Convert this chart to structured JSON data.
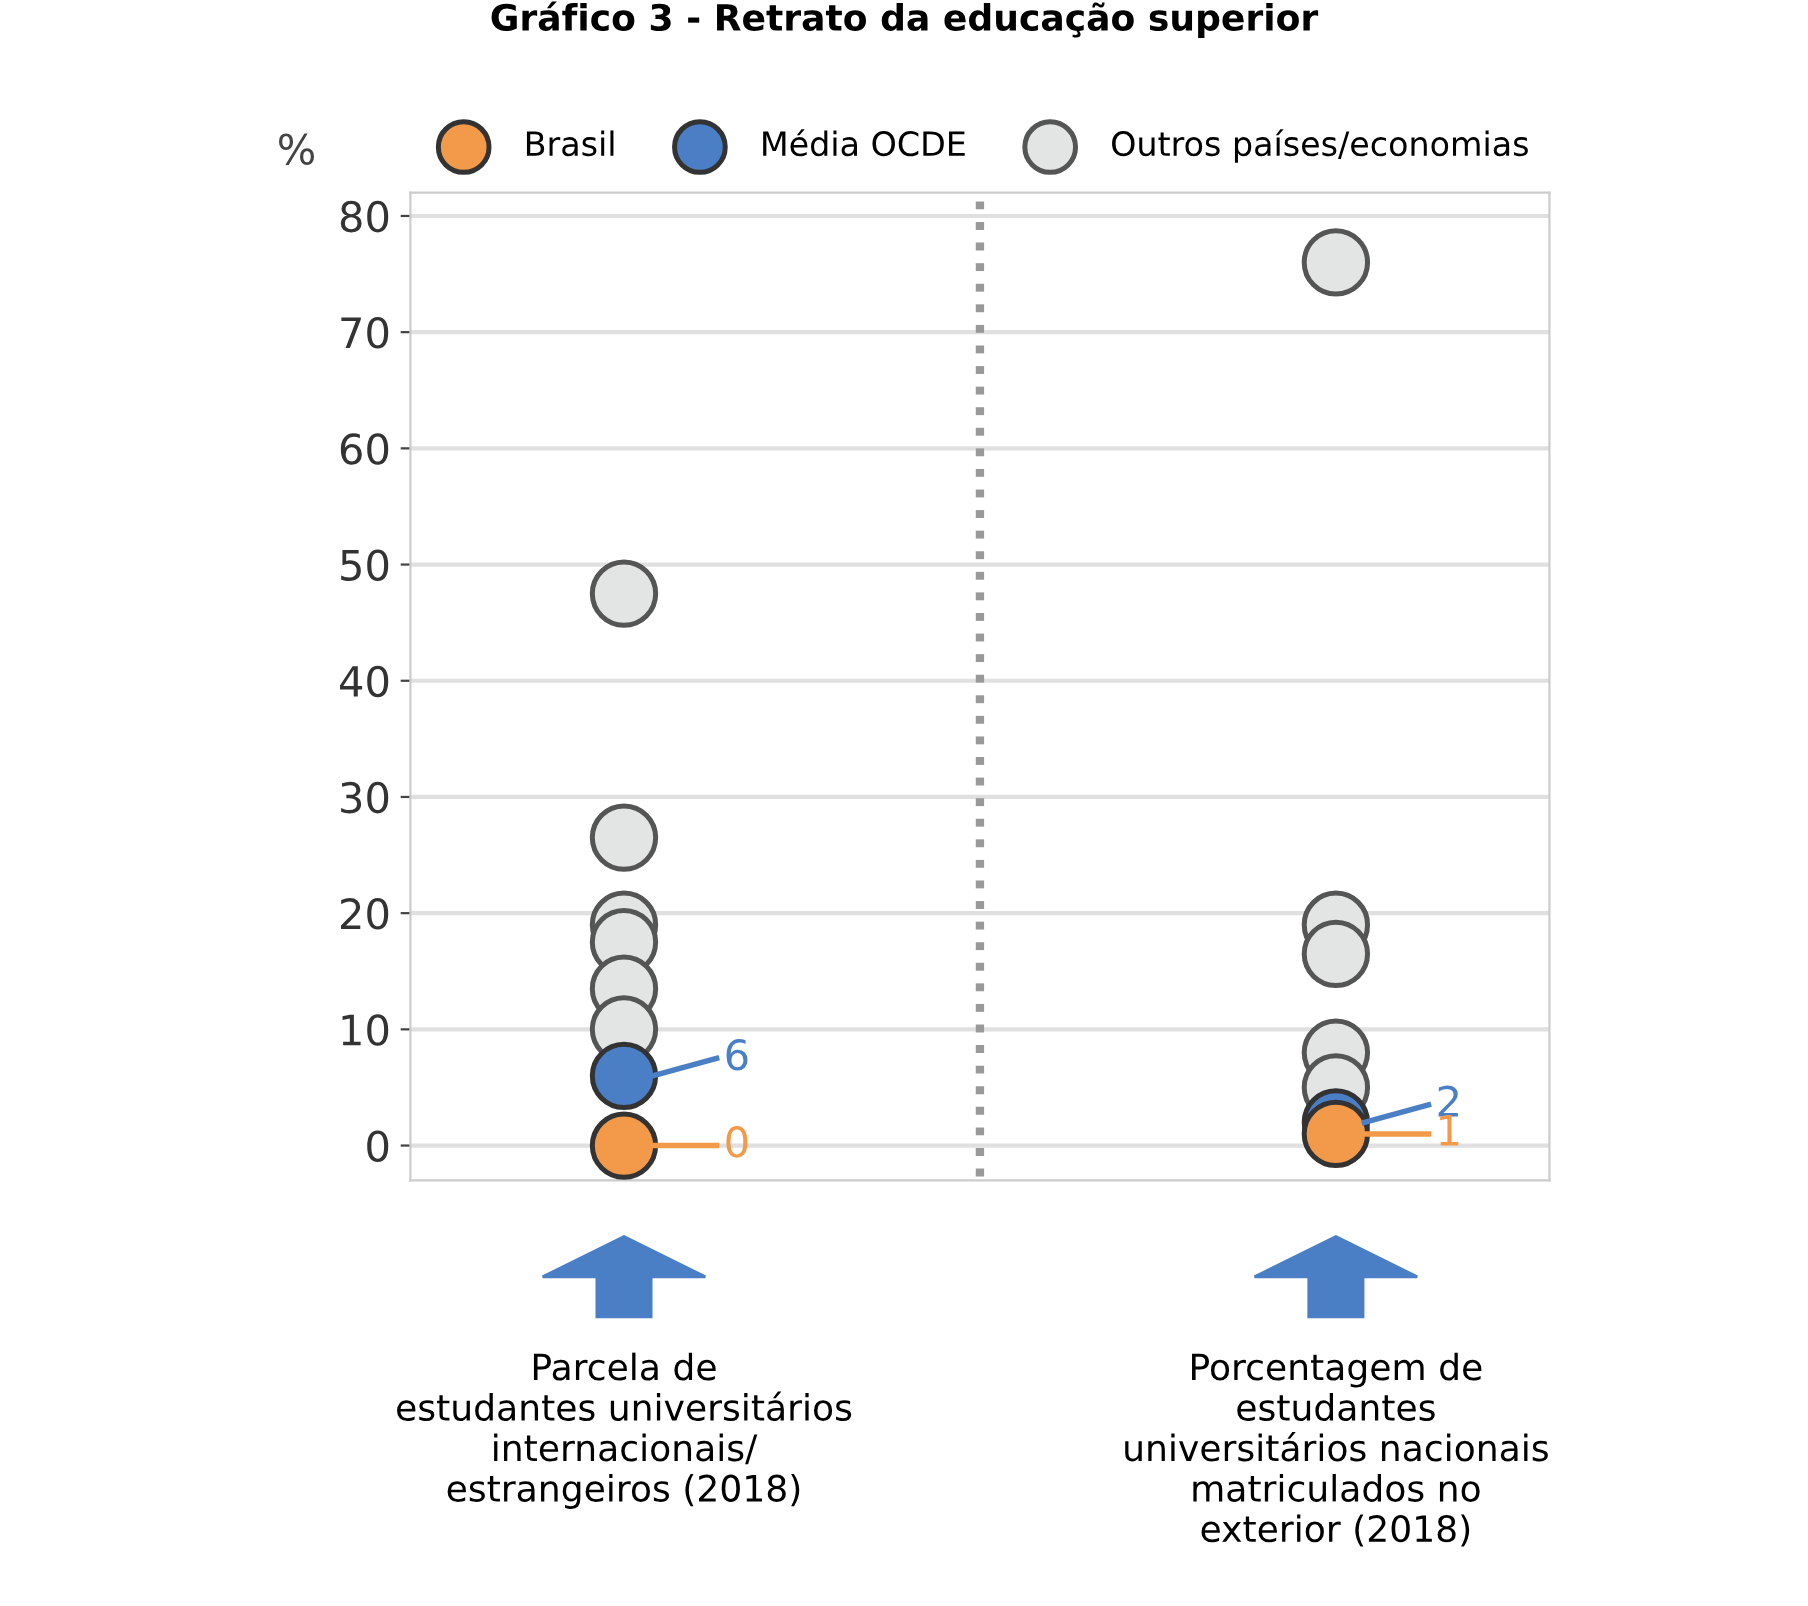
{
  "chart_data": {
    "type": "scatter",
    "title": "Gráfico 3 - Retrato da educação superior",
    "ylabel": "%",
    "categories": [
      "Parcela de\nestudantes universitários\ninternacionais/\nestrangeiros (2018)",
      "Porcentagem de\nestudantes\nuniversitários nacionais\nmatriculados no\nexterior (2018)"
    ],
    "series": [
      {
        "name": "Outros países/economias",
        "color": "#e3e4e4",
        "x": [
          "Parcela de\nestudantes universitários\ninternacionais/\nestrangeiros (2018)",
          "Parcela de\nestudantes universitários\ninternacionais/\nestrangeiros (2018)",
          "Parcela de\nestudantes universitários\ninternacionais/\nestrangeiros (2018)",
          "Parcela de\nestudantes universitários\ninternacionais/\nestrangeiros (2018)",
          "Parcela de\nestudantes universitários\ninternacionais/\nestrangeiros (2018)",
          "Parcela de\nestudantes universitários\ninternacionais/\nestrangeiros (2018)",
          "Porcentagem de\nestudantes\nuniversitários nacionais\nmatriculados no\nexterior (2018)",
          "Porcentagem de\nestudantes\nuniversitários nacionais\nmatriculados no\nexterior (2018)",
          "Porcentagem de\nestudantes\nuniversitários nacionais\nmatriculados no\nexterior (2018)",
          "Porcentagem de\nestudantes\nuniversitários nacionais\nmatriculados no\nexterior (2018)",
          "Porcentagem de\nestudantes\nuniversitários nacionais\nmatriculados no\nexterior (2018)"
        ],
        "values": [
          47.5,
          26.5,
          19,
          17.5,
          13.5,
          10,
          76,
          19,
          16.5,
          8,
          5
        ]
      },
      {
        "name": "Média OCDE",
        "color": "#4a7fc6",
        "values": [
          6,
          2
        ],
        "value_labels": [
          "6",
          "2"
        ]
      },
      {
        "name": "Brasil",
        "color": "#f39a4a",
        "values": [
          0,
          1
        ],
        "value_labels": [
          "0",
          "1"
        ]
      }
    ],
    "ylim": [
      -3,
      82
    ],
    "yticks": [
      0,
      10,
      20,
      30,
      40,
      50,
      60,
      70,
      80
    ],
    "grid": "y",
    "legend": "top"
  }
}
